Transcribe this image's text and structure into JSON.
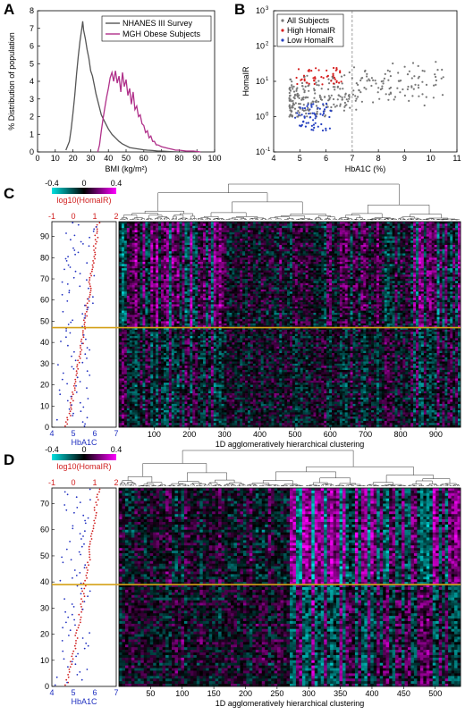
{
  "panels": {
    "a": "A",
    "b": "B",
    "c": "C",
    "d": "D"
  },
  "chart_data": [
    {
      "type": "line",
      "panel": "A",
      "title": "",
      "xlabel": "BMI (kg/m²)",
      "ylabel": "% Distribution of population",
      "xlim": [
        0,
        100
      ],
      "ylim": [
        0,
        8
      ],
      "xticks": [
        0,
        10,
        20,
        30,
        40,
        50,
        60,
        70,
        80,
        90,
        100
      ],
      "yticks": [
        0,
        1,
        2,
        3,
        4,
        5,
        6,
        7,
        8
      ],
      "legend_position": "top-right",
      "series": [
        {
          "name": "NHANES III Survey",
          "color": "#555555",
          "x": [
            16,
            18,
            19,
            20,
            21,
            22,
            23,
            24,
            25,
            25.5,
            26,
            27,
            28,
            29,
            30,
            31,
            32,
            33,
            34,
            35,
            36,
            38,
            40,
            42,
            44,
            46,
            48,
            50,
            52,
            55,
            58,
            60,
            62,
            65,
            68,
            70,
            75,
            80
          ],
          "y": [
            0.1,
            0.6,
            1.3,
            2.2,
            3.2,
            4.4,
            5.4,
            6.3,
            7.0,
            7.4,
            6.9,
            6.4,
            5.8,
            5.3,
            4.6,
            4.3,
            3.8,
            3.3,
            2.9,
            2.5,
            2.1,
            1.7,
            1.3,
            1.0,
            0.8,
            0.6,
            0.45,
            0.35,
            0.25,
            0.2,
            0.15,
            0.12,
            0.1,
            0.08,
            0.05,
            0.05,
            0.02,
            0.0
          ]
        },
        {
          "name": "MGH Obese Subjects",
          "color": "#b0308a",
          "x": [
            34,
            35,
            36,
            37,
            38,
            39,
            40,
            41,
            42,
            43,
            44,
            45,
            46,
            47,
            48,
            49,
            50,
            51,
            52,
            53,
            54,
            55,
            56,
            57,
            58,
            59,
            60,
            61,
            62,
            63,
            64,
            65,
            66,
            67,
            68,
            70,
            72,
            74,
            76,
            78,
            80,
            84,
            88,
            92
          ],
          "y": [
            0.0,
            0.4,
            1.2,
            1.9,
            2.5,
            3.1,
            3.6,
            4.2,
            4.5,
            4.0,
            4.6,
            3.9,
            4.3,
            3.4,
            4.5,
            3.7,
            4.1,
            3.2,
            3.6,
            2.7,
            3.4,
            2.4,
            2.6,
            2.0,
            2.1,
            1.6,
            1.5,
            1.1,
            1.2,
            0.8,
            0.9,
            0.6,
            0.6,
            0.4,
            0.4,
            0.3,
            0.25,
            0.2,
            0.15,
            0.1,
            0.1,
            0.05,
            0.05,
            0.0
          ]
        }
      ]
    },
    {
      "type": "scatter",
      "panel": "B",
      "title": "",
      "xlabel": "HbA1C (%)",
      "ylabel": "HomaIR",
      "xlim": [
        4,
        11
      ],
      "ylim": [
        0.1,
        1000
      ],
      "yscale": "log",
      "xticks": [
        4,
        5,
        6,
        7,
        8,
        9,
        10,
        11
      ],
      "yticks": [
        0.1,
        1,
        10,
        100,
        1000
      ],
      "ytick_labels": [
        "10",
        "10",
        "10",
        "10",
        "10"
      ],
      "ytick_exponents": [
        "-1",
        "0",
        "1",
        "2",
        "3"
      ],
      "threshold_x": 7,
      "legend_position": "top-left",
      "series": [
        {
          "name": "All Subjects",
          "color": "#777777",
          "x_range": [
            4.6,
            10.5
          ],
          "y_range": [
            1,
            140
          ],
          "n": 300
        },
        {
          "name": "High HomaIR",
          "color": "#d62020",
          "x_range": [
            4.8,
            6.6
          ],
          "y_range": [
            8,
            25
          ],
          "n": 45
        },
        {
          "name": "Low HomaIR",
          "color": "#2540c0",
          "x_range": [
            4.8,
            6.2
          ],
          "y_range": [
            0.4,
            2.4
          ],
          "n": 60
        }
      ]
    },
    {
      "type": "heatmap",
      "panel": "C",
      "xlabel": "1D agglomeratively hierarchical clustering",
      "xlim": [
        0,
        970
      ],
      "xticks": [
        100,
        200,
        300,
        400,
        500,
        600,
        700,
        800,
        900
      ],
      "ylim": [
        0,
        97
      ],
      "yticks": [
        0,
        10,
        20,
        30,
        40,
        50,
        60,
        70,
        80,
        90
      ],
      "colorbar": {
        "min": -0.4,
        "max": 0.4,
        "ticks": [
          "-0.4",
          "0",
          "0.4"
        ],
        "low_color": "#00e0e0",
        "mid_color": "#000000",
        "high_color": "#ff00ff"
      },
      "top_axis_label": "log10(HomaIR)",
      "top_axis_ticks": [
        "-1",
        "0",
        "1",
        "2"
      ],
      "bottom_axis_label": "HbA1C",
      "bottom_axis_ticks": [
        "4",
        "5",
        "6",
        "7"
      ],
      "split_row": 47,
      "rows": 97,
      "cols": 130
    },
    {
      "type": "heatmap",
      "panel": "D",
      "xlabel": "1D agglomeratively hierarchical clustering",
      "xlim": [
        0,
        540
      ],
      "xticks": [
        50,
        100,
        150,
        200,
        250,
        300,
        350,
        400,
        450,
        500
      ],
      "ylim": [
        0,
        76
      ],
      "yticks": [
        0,
        10,
        20,
        30,
        40,
        50,
        60,
        70
      ],
      "colorbar": {
        "min": -0.4,
        "max": 0.4,
        "ticks": [
          "-0.4",
          "0",
          "0.4"
        ],
        "low_color": "#00e0e0",
        "mid_color": "#000000",
        "high_color": "#ff00ff"
      },
      "top_axis_label": "log10(HomaIR)",
      "top_axis_ticks": [
        "-1",
        "0",
        "1",
        "2"
      ],
      "bottom_axis_label": "HbA1C",
      "bottom_axis_ticks": [
        "4",
        "5",
        "6",
        "7"
      ],
      "split_row": 39,
      "rows": 76,
      "cols": 110
    }
  ]
}
